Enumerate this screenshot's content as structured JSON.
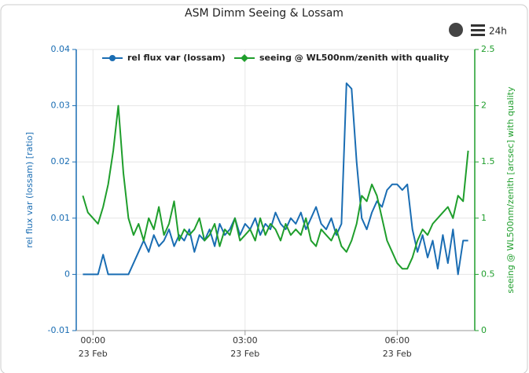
{
  "chart_data": {
    "type": "line",
    "title": "ASM Dimm Seeing & Lossam",
    "menu_label": "24h",
    "ylabel": "rel flux var (lossam) [ratio]",
    "y2label": "seeing @ WL500nm/zenith [arcsec] with quality",
    "grid": true,
    "legend": "top",
    "xlim": [
      -0.33,
      7.53
    ],
    "xticks": [
      {
        "value": 0,
        "label": "00:00\n23 Feb"
      },
      {
        "value": 3,
        "label": "03:00\n23 Feb"
      },
      {
        "value": 6,
        "label": "06:00\n23 Feb"
      }
    ],
    "ylim": [
      -0.01,
      0.04
    ],
    "yticks": [
      -0.01,
      0,
      0.01,
      0.02,
      0.03,
      0.04
    ],
    "y2lim": [
      0,
      2.5
    ],
    "y2ticks": [
      0,
      0.5,
      1,
      1.5,
      2,
      2.5
    ],
    "x": [
      -0.2,
      -0.1,
      0,
      0.1,
      0.2,
      0.3,
      0.4,
      0.5,
      0.6,
      0.7,
      0.8,
      0.9,
      1,
      1.1,
      1.2,
      1.3,
      1.4,
      1.5,
      1.6,
      1.7,
      1.8,
      1.9,
      2,
      2.1,
      2.2,
      2.3,
      2.4,
      2.5,
      2.6,
      2.7,
      2.8,
      2.9,
      3,
      3.1,
      3.2,
      3.3,
      3.4,
      3.5,
      3.6,
      3.7,
      3.8,
      3.9,
      4,
      4.1,
      4.2,
      4.3,
      4.4,
      4.5,
      4.6,
      4.7,
      4.8,
      4.9,
      5,
      5.1,
      5.2,
      5.3,
      5.4,
      5.5,
      5.6,
      5.7,
      5.8,
      5.9,
      6,
      6.1,
      6.2,
      6.3,
      6.4,
      6.5,
      6.6,
      6.7,
      6.8,
      6.9,
      7,
      7.1,
      7.2,
      7.3,
      7.4
    ],
    "series": [
      {
        "name": "rel flux var (lossam)",
        "color": "#1a6db3",
        "marker": "circle",
        "values": [
          0,
          0,
          0,
          0,
          0.0035,
          0,
          0,
          0,
          0,
          0,
          0.002,
          0.004,
          0.006,
          0.004,
          0.007,
          0.005,
          0.006,
          0.008,
          0.005,
          0.007,
          0.006,
          0.008,
          0.004,
          0.007,
          0.006,
          0.008,
          0.005,
          0.009,
          0.007,
          0.008,
          0.01,
          0.007,
          0.009,
          0.008,
          0.01,
          0.007,
          0.009,
          0.008,
          0.011,
          0.009,
          0.008,
          0.01,
          0.009,
          0.011,
          0.008,
          0.01,
          0.012,
          0.009,
          0.008,
          0.01,
          0.007,
          0.009,
          0.034,
          0.033,
          0.02,
          0.01,
          0.008,
          0.011,
          0.013,
          0.012,
          0.015,
          0.016,
          0.016,
          0.015,
          0.016,
          0.008,
          0.004,
          0.007,
          0.003,
          0.006,
          0.001,
          0.007,
          0.002,
          0.008,
          0,
          0.006,
          0.006
        ]
      },
      {
        "name": "seeing @ WL500nm/zenith with quality",
        "color": "#1f9e2c",
        "marker": "diamond",
        "axis": "y2",
        "values": [
          1.2,
          1.05,
          1.0,
          0.95,
          1.1,
          1.3,
          1.6,
          2.0,
          1.4,
          1.0,
          0.85,
          0.95,
          0.8,
          1.0,
          0.9,
          1.1,
          0.85,
          0.95,
          1.15,
          0.8,
          0.9,
          0.85,
          0.9,
          1.0,
          0.8,
          0.85,
          0.95,
          0.75,
          0.9,
          0.85,
          1.0,
          0.8,
          0.85,
          0.9,
          0.8,
          1.0,
          0.85,
          0.95,
          0.9,
          0.8,
          0.95,
          0.85,
          0.9,
          0.85,
          1.0,
          0.8,
          0.75,
          0.9,
          0.85,
          0.8,
          0.9,
          0.75,
          0.7,
          0.8,
          0.95,
          1.2,
          1.15,
          1.3,
          1.2,
          1.0,
          0.8,
          0.7,
          0.6,
          0.55,
          0.55,
          0.65,
          0.8,
          0.9,
          0.85,
          0.95,
          1.0,
          1.05,
          1.1,
          1.0,
          1.2,
          1.15,
          1.6
        ]
      }
    ]
  }
}
